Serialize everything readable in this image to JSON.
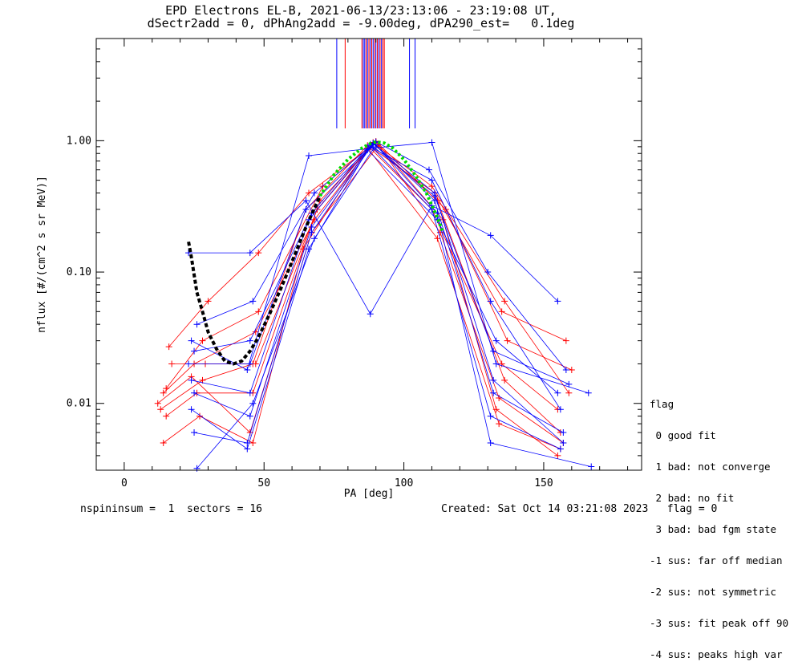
{
  "title_line1": "EPD Electrons EL-B, 2021-06-13/23:13:06 - 23:19:08 UT,",
  "title_line2": "dSectr2add = 0, dPhAng2add = -9.00deg, dPA290_est=   0.1deg",
  "footer": {
    "left": "nspininsum =  1  sectors = 16",
    "right": "Created: Sat Oct 14 03:21:08 2023   flag = 0"
  },
  "legend": {
    "title": "flag",
    "items": [
      " 0 good fit",
      " 1 bad: not converge",
      " 2 bad: no fit",
      " 3 bad: bad fgm state",
      "-1 sus: far off median",
      "-2 sus: not symmetric",
      "-3 sus: fit peak off 90",
      "-4 sus: peaks high var"
    ]
  },
  "colors": {
    "red": "#ff0000",
    "blue": "#0000ff",
    "fit_black": "#000000",
    "fit_green": "#00dd00"
  },
  "chart_data": {
    "type": "line",
    "xlabel": "PA [deg]",
    "ylabel": "nflux [#/(cm^2 s sr MeV)]",
    "xlim": [
      -10,
      185
    ],
    "ylim": [
      0.0031,
      6.0
    ],
    "yscale": "log",
    "x_ticks": [
      0,
      50,
      100,
      150
    ],
    "x_tick_labels": [
      "0",
      "50",
      "100",
      "150"
    ],
    "y_ticks": [
      0.01,
      0.1,
      1.0
    ],
    "y_tick_labels": [
      "0.01",
      "0.10",
      "1.00"
    ],
    "vertical_marker_lines_x": {
      "red": [
        79,
        85,
        86.5,
        87.5,
        88.5,
        89.5,
        90.5,
        91.5,
        92.5,
        93
      ],
      "blue": [
        76,
        85.5,
        86,
        87,
        88,
        89,
        90,
        91,
        92,
        102,
        104
      ]
    },
    "series": [
      {
        "color": "red",
        "x": [
          13,
          28,
          46,
          65,
          87,
          110,
          135,
          155
        ],
        "y": [
          0.009,
          0.015,
          0.02,
          0.3,
          0.92,
          0.3,
          0.02,
          0.009
        ]
      },
      {
        "color": "red",
        "x": [
          14,
          25,
          47,
          68,
          89,
          112,
          136,
          156
        ],
        "y": [
          0.012,
          0.02,
          0.035,
          0.25,
          0.95,
          0.35,
          0.015,
          0.006
        ]
      },
      {
        "color": "red",
        "x": [
          15,
          26,
          46,
          70,
          90,
          113,
          134,
          157
        ],
        "y": [
          0.008,
          0.012,
          0.012,
          0.35,
          0.98,
          0.2,
          0.011,
          0.005
        ]
      },
      {
        "color": "red",
        "x": [
          16,
          30,
          48,
          66,
          88,
          111,
          135,
          158
        ],
        "y": [
          0.027,
          0.06,
          0.14,
          0.4,
          0.9,
          0.4,
          0.05,
          0.03
        ]
      },
      {
        "color": "red",
        "x": [
          12,
          24,
          45,
          67,
          91,
          114,
          133,
          155
        ],
        "y": [
          0.01,
          0.016,
          0.006,
          0.2,
          0.93,
          0.25,
          0.009,
          0.004
        ]
      },
      {
        "color": "red",
        "x": [
          17,
          29,
          47,
          69,
          89,
          110,
          136,
          159
        ],
        "y": [
          0.02,
          0.02,
          0.02,
          0.3,
          0.97,
          0.45,
          0.06,
          0.012
        ]
      },
      {
        "color": "red",
        "x": [
          14,
          27,
          46,
          64,
          87,
          112,
          134,
          156
        ],
        "y": [
          0.005,
          0.008,
          0.005,
          0.15,
          0.88,
          0.18,
          0.007,
          0.0045
        ]
      },
      {
        "color": "red",
        "x": [
          15,
          28,
          48,
          71,
          90,
          115,
          137,
          160
        ],
        "y": [
          0.013,
          0.03,
          0.05,
          0.45,
          0.99,
          0.3,
          0.03,
          0.018
        ]
      },
      {
        "color": "blue",
        "x": [
          24,
          45,
          66,
          88,
          110,
          131,
          156
        ],
        "y": [
          0.015,
          0.012,
          0.25,
          0.9,
          0.5,
          0.06,
          0.009
        ]
      },
      {
        "color": "blue",
        "x": [
          25,
          44,
          67,
          89,
          111,
          132,
          157
        ],
        "y": [
          0.006,
          0.005,
          0.2,
          0.95,
          0.4,
          0.015,
          0.005
        ]
      },
      {
        "color": "blue",
        "x": [
          23,
          45,
          65,
          87,
          112,
          133,
          155
        ],
        "y": [
          0.02,
          0.02,
          0.3,
          0.85,
          0.25,
          0.03,
          0.012
        ]
      },
      {
        "color": "blue",
        "x": [
          26,
          46,
          68,
          90,
          109,
          130,
          158
        ],
        "y": [
          0.04,
          0.06,
          0.4,
          0.98,
          0.6,
          0.1,
          0.018
        ]
      },
      {
        "color": "blue",
        "x": [
          24,
          44,
          66,
          88,
          110,
          131,
          156
        ],
        "y": [
          0.009,
          0.0045,
          0.15,
          0.92,
          0.3,
          0.008,
          0.0045
        ]
      },
      {
        "color": "blue",
        "x": [
          25,
          45,
          67,
          89,
          111,
          132,
          157
        ],
        "y": [
          0.012,
          0.008,
          0.22,
          0.96,
          0.35,
          0.012,
          0.006
        ]
      },
      {
        "color": "blue",
        "x": [
          23,
          45,
          65,
          88,
          110,
          131,
          155
        ],
        "y": [
          0.14,
          0.14,
          0.35,
          0.048,
          0.32,
          0.19,
          0.06
        ]
      },
      {
        "color": "blue",
        "x": [
          24,
          44,
          66,
          89,
          110,
          133,
          166
        ],
        "y": [
          0.03,
          0.018,
          0.77,
          0.88,
          0.97,
          0.02,
          0.012
        ]
      },
      {
        "color": "blue",
        "x": [
          26,
          46,
          68,
          90,
          112,
          131,
          167
        ],
        "y": [
          0.0032,
          0.01,
          0.18,
          0.93,
          0.28,
          0.005,
          0.0033
        ]
      },
      {
        "color": "blue",
        "x": [
          25,
          45,
          67,
          88,
          111,
          132,
          159
        ],
        "y": [
          0.025,
          0.03,
          0.28,
          0.94,
          0.38,
          0.025,
          0.014
        ]
      }
    ],
    "fit_lines": [
      {
        "color": "black",
        "style": "dashed",
        "x": [
          23,
          24,
          25,
          26,
          28,
          30,
          33,
          36,
          39,
          42,
          45,
          48,
          52,
          56,
          60,
          65,
          70
        ],
        "y": [
          0.17,
          0.13,
          0.095,
          0.07,
          0.05,
          0.035,
          0.026,
          0.021,
          0.02,
          0.021,
          0.025,
          0.032,
          0.048,
          0.075,
          0.12,
          0.22,
          0.38
        ]
      },
      {
        "color": "green",
        "style": "dotted",
        "x": [
          70,
          75,
          80,
          85,
          88,
          90,
          93,
          96,
          100,
          104,
          108,
          112,
          114
        ],
        "y": [
          0.38,
          0.55,
          0.72,
          0.88,
          0.95,
          0.98,
          0.96,
          0.88,
          0.72,
          0.55,
          0.4,
          0.26,
          0.2
        ]
      }
    ]
  }
}
